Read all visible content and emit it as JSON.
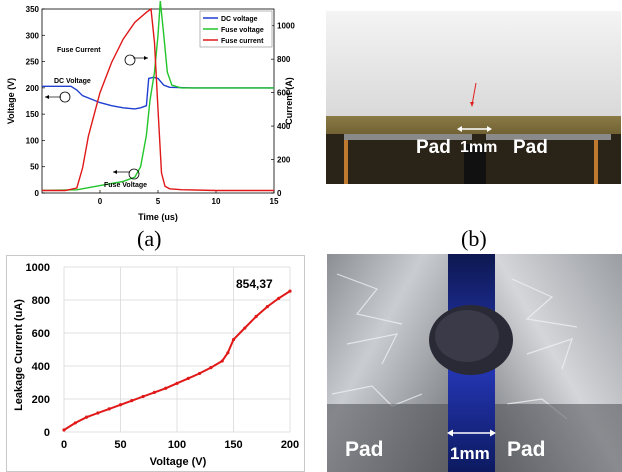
{
  "captions": {
    "a": "(a)",
    "b": "(b)"
  },
  "photo_b": {
    "labels": {
      "pad_left": "Pad",
      "gap": "1mm",
      "pad_right": "Pad"
    },
    "colors": {
      "sky": "#e4e4e4",
      "board": "#6b5a2a",
      "dark": "#2a2418"
    }
  },
  "photo_d": {
    "labels": {
      "pad_left": "Pad",
      "gap": "1mm",
      "pad_right": "Pad"
    },
    "colors": {
      "foil": "#b9bcc0",
      "gap": "#1a2a8c",
      "blob": "#2a2a36"
    }
  },
  "chart_data": [
    {
      "type": "line",
      "title": "",
      "xlabel": "Time (us)",
      "ylabel": "Voltage (V)",
      "ylabel_right": "Current (A)",
      "xlim": [
        -5,
        15
      ],
      "ylim": [
        0,
        350
      ],
      "ylim_right": [
        0,
        1100
      ],
      "xticks": [
        0,
        5,
        10,
        15
      ],
      "yticks": [
        0,
        50,
        100,
        150,
        200,
        250,
        300,
        350
      ],
      "yticks_right": [
        0,
        200,
        400,
        600,
        800,
        1000
      ],
      "legend": [
        "DC voltage",
        "Fuse voltage",
        "Fuse current"
      ],
      "legend_position": "top-right",
      "annotations": [
        "Fuse Current",
        "DC Voltage",
        "Fuse Voltage"
      ],
      "series": [
        {
          "name": "DC voltage",
          "color": "#1f3fd0",
          "axis": "left",
          "x": [
            -5,
            -2.5,
            -2,
            -1.5,
            0,
            1,
            2,
            3,
            3.5,
            4,
            4.2,
            4.6,
            5,
            5.5,
            6,
            8,
            10,
            15
          ],
          "y": [
            203,
            203,
            196,
            185,
            172,
            166,
            162,
            160,
            162,
            166,
            218,
            220,
            218,
            205,
            201,
            200,
            200,
            200
          ]
        },
        {
          "name": "Fuse voltage",
          "color": "#22c52a",
          "axis": "left",
          "x": [
            -5,
            -2,
            -1,
            0,
            1,
            2,
            3,
            3.5,
            4,
            4.3,
            4.7,
            5.0,
            5.2,
            5.5,
            5.8,
            6.2,
            7,
            10,
            15
          ],
          "y": [
            5,
            6,
            10,
            14,
            18,
            22,
            30,
            50,
            110,
            175,
            230,
            300,
            365,
            300,
            230,
            205,
            200,
            200,
            200
          ]
        },
        {
          "name": "Fuse current",
          "color": "#e01818",
          "axis": "right",
          "x": [
            -5,
            -3,
            -2,
            -1.5,
            -1,
            0,
            1,
            2,
            3,
            4,
            4.4,
            4.7,
            5.0,
            5.3,
            5.6,
            6,
            7,
            10,
            15
          ],
          "y": [
            15,
            15,
            30,
            150,
            340,
            600,
            780,
            920,
            1020,
            1080,
            1100,
            900,
            500,
            120,
            40,
            25,
            20,
            15,
            15
          ]
        }
      ]
    },
    {
      "type": "line",
      "title": "",
      "xlabel": "Voltage (V)",
      "ylabel": "Leakage Current (uA)",
      "xlim": [
        0,
        200
      ],
      "ylim": [
        0,
        1000
      ],
      "xticks": [
        0,
        50,
        100,
        150,
        200
      ],
      "yticks": [
        0,
        200,
        400,
        600,
        800,
        1000
      ],
      "grid": true,
      "annotations": [
        "854,37"
      ],
      "series": [
        {
          "name": "",
          "color": "#e01818",
          "x": [
            0,
            10,
            20,
            30,
            40,
            50,
            60,
            70,
            80,
            90,
            100,
            110,
            120,
            130,
            140,
            145,
            150,
            160,
            170,
            180,
            190,
            200
          ],
          "y": [
            12,
            55,
            90,
            115,
            140,
            165,
            190,
            215,
            240,
            265,
            295,
            325,
            355,
            390,
            430,
            480,
            560,
            630,
            700,
            760,
            810,
            854
          ]
        }
      ]
    }
  ]
}
